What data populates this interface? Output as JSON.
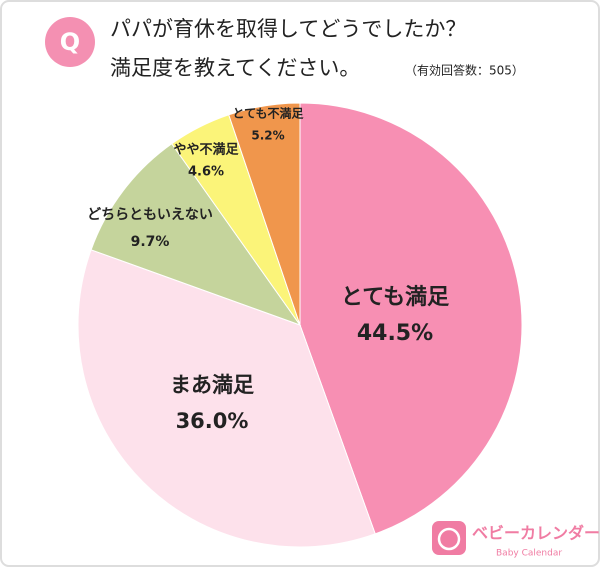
{
  "badge": "Q",
  "chart_data": {
    "type": "pie",
    "title_lines": [
      "パパが育休を取得してどうでしたか？",
      "満足度を教えてください。"
    ],
    "note": "（有効回答数：505）",
    "categories": [
      "とても満足",
      "まあ満足",
      "どちらともいえない",
      "やや不満足",
      "とても不満足"
    ],
    "values": [
      44.5,
      36.0,
      9.7,
      4.6,
      5.2
    ],
    "value_labels": [
      "44.5%",
      "36.0%",
      "9.7%",
      "4.6%",
      "5.2%"
    ],
    "colors": [
      "#f78fb3",
      "#fde1eb",
      "#c5d49c",
      "#fbf479",
      "#f0964c"
    ]
  },
  "logo": {
    "name": "ベビーカレンダー",
    "sub": "Baby Calendar"
  }
}
